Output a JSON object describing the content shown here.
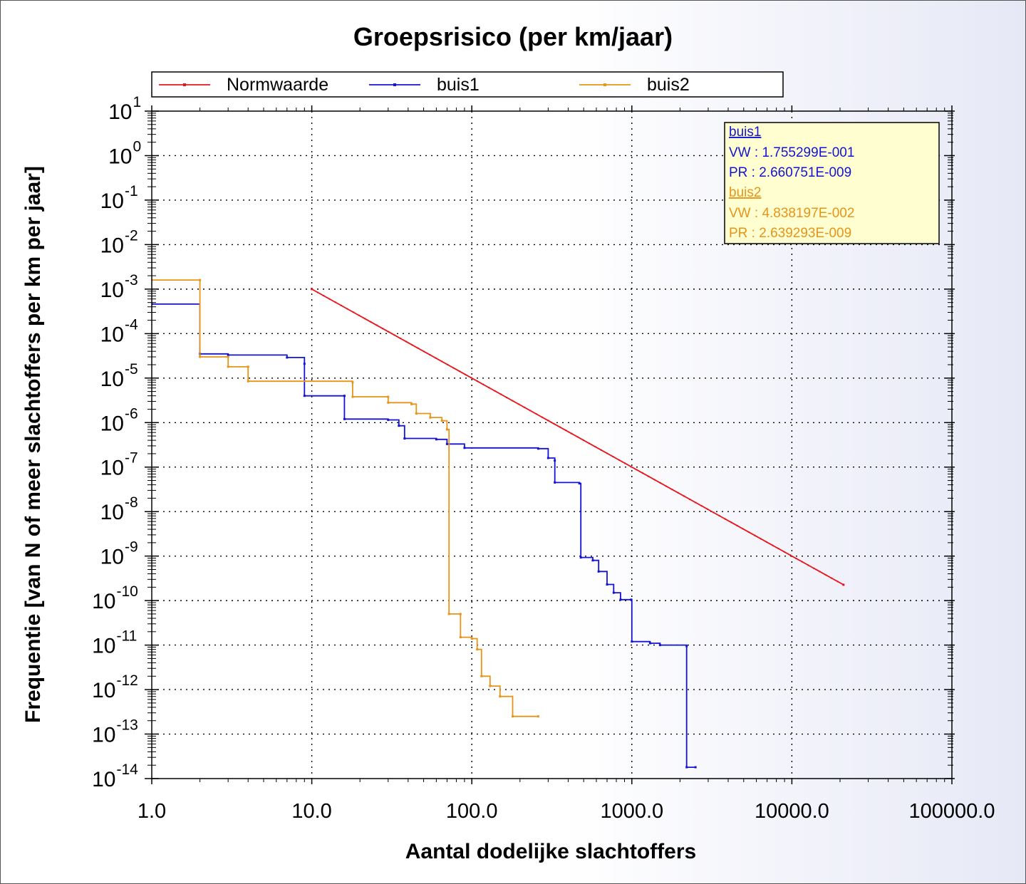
{
  "chart_data": {
    "type": "line",
    "title": "Groepsrisico (per km/jaar)",
    "xlabel": "Aantal dodelijke slachtoffers",
    "ylabel": "Frequentie [van N of meer slachtoffers per km per jaar]",
    "xscale": "log",
    "yscale": "log",
    "xlim": [
      1,
      100000
    ],
    "ylim": [
      1e-14,
      10
    ],
    "x_tick_labels": [
      "1.0",
      "10.0",
      "100.0",
      "1000.0",
      "10000.0",
      "100000.0"
    ],
    "y_tick_labels": [
      {
        "base": "10",
        "exp": "1"
      },
      {
        "base": "10",
        "exp": "0"
      },
      {
        "base": "10",
        "exp": "-1"
      },
      {
        "base": "10",
        "exp": "-2"
      },
      {
        "base": "10",
        "exp": "-3"
      },
      {
        "base": "10",
        "exp": "-4"
      },
      {
        "base": "10",
        "exp": "-5"
      },
      {
        "base": "10",
        "exp": "-6"
      },
      {
        "base": "10",
        "exp": "-7"
      },
      {
        "base": "10",
        "exp": "-8"
      },
      {
        "base": "10",
        "exp": "-9"
      },
      {
        "base": "10",
        "exp": "-10"
      },
      {
        "base": "10",
        "exp": "-11"
      },
      {
        "base": "10",
        "exp": "-12"
      },
      {
        "base": "10",
        "exp": "-13"
      },
      {
        "base": "10",
        "exp": "-14"
      }
    ],
    "grid": true,
    "legend_position": "top",
    "series": [
      {
        "name": "Normwaarde",
        "color": "#e8141b",
        "step": false,
        "points": [
          [
            10,
            0.001
          ],
          [
            21000,
            2.27e-10
          ]
        ]
      },
      {
        "name": "buis1",
        "color": "#1414d2",
        "step": true,
        "points": [
          [
            1,
            0.00046
          ],
          [
            2,
            3.5e-05
          ],
          [
            3,
            3.3e-05
          ],
          [
            7,
            2.9e-05
          ],
          [
            9,
            2.1e-05
          ],
          [
            9,
            4e-06
          ],
          [
            16,
            4e-06
          ],
          [
            16,
            1.2e-06
          ],
          [
            30,
            1.15e-06
          ],
          [
            35,
            8.5e-07
          ],
          [
            38,
            4.4e-07
          ],
          [
            60,
            4.2e-07
          ],
          [
            70,
            3.3e-07
          ],
          [
            90,
            2.7e-07
          ],
          [
            260,
            2.6e-07
          ],
          [
            300,
            1.6e-07
          ],
          [
            330,
            1.4e-07
          ],
          [
            330,
            4.5e-08
          ],
          [
            470,
            4.3e-08
          ],
          [
            480,
            9.3e-10
          ],
          [
            570,
            8e-10
          ],
          [
            620,
            4.5e-10
          ],
          [
            700,
            2.3e-10
          ],
          [
            770,
            1.5e-10
          ],
          [
            850,
            1.05e-10
          ],
          [
            990,
            1.05e-10
          ],
          [
            1000,
            1.2e-11
          ],
          [
            1300,
            1.1e-11
          ],
          [
            1500,
            1e-11
          ],
          [
            2200,
            9.5e-12
          ],
          [
            2200,
            1.8e-14
          ],
          [
            2500,
            1.8e-14
          ]
        ]
      },
      {
        "name": "buis2",
        "color": "#e89418",
        "step": true,
        "points": [
          [
            1,
            0.0016
          ],
          [
            2,
            0.0016
          ],
          [
            2,
            3e-05
          ],
          [
            3,
            3e-05
          ],
          [
            3,
            1.8e-05
          ],
          [
            4,
            1.8e-05
          ],
          [
            4,
            8.5e-06
          ],
          [
            18,
            8e-06
          ],
          [
            18,
            3.8e-06
          ],
          [
            30,
            3.8e-06
          ],
          [
            30,
            2.8e-06
          ],
          [
            42,
            2.6e-06
          ],
          [
            45,
            1.6e-06
          ],
          [
            55,
            1.3e-06
          ],
          [
            65,
            1.1e-06
          ],
          [
            70,
            7e-07
          ],
          [
            72,
            5e-11
          ],
          [
            85,
            5e-11
          ],
          [
            85,
            1.5e-11
          ],
          [
            100,
            1.4e-11
          ],
          [
            108,
            8e-12
          ],
          [
            115,
            2e-12
          ],
          [
            130,
            1.2e-12
          ],
          [
            150,
            7e-13
          ],
          [
            180,
            2.5e-13
          ],
          [
            260,
            2.5e-13
          ]
        ]
      }
    ],
    "info_box": [
      {
        "name": "buis1",
        "color": "#1414d2",
        "lines": [
          "VW : 1.755299E-001",
          "PR : 2.660751E-009"
        ]
      },
      {
        "name": "buis2",
        "color": "#e89418",
        "lines": [
          "VW : 4.838197E-002",
          "PR : 2.639293E-009"
        ]
      }
    ]
  }
}
